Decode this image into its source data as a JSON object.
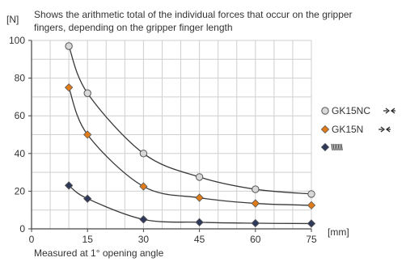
{
  "chart_data": {
    "type": "line",
    "title": "Shows the arithmetic total of the individual forces that occur on the gripper fingers, depending on the gripper finger length",
    "title_lines": [
      "Shows the arithmetic total of the individual forces that occur on the gripper",
      "fingers, depending on the gripper finger length"
    ],
    "ylabel": "[N]",
    "xlabel": "[mm]",
    "footnote": "Measured at 1° opening angle",
    "xlim": [
      0,
      75
    ],
    "ylim": [
      0,
      100
    ],
    "xticks": [
      "0",
      "15",
      "30",
      "45",
      "60",
      "75"
    ],
    "yticks": [
      "0",
      "20",
      "40",
      "60",
      "80",
      "100"
    ],
    "grid": true,
    "legend_position": "right",
    "x": [
      10,
      15,
      30,
      45,
      60,
      75
    ],
    "series": [
      {
        "name": "GK15NC",
        "symbol": "-> <-",
        "marker": "circle",
        "color": "#d8d8d8",
        "values": [
          97,
          72,
          40,
          27.5,
          21,
          18.5
        ]
      },
      {
        "name": "GK15N",
        "symbol": "-> <-",
        "marker": "diamond",
        "color": "#e07b1a",
        "values": [
          75,
          50,
          22.5,
          16.5,
          13.5,
          12.5
        ]
      },
      {
        "name": "",
        "symbol": "spring",
        "marker": "diamond",
        "color": "#2f3a5a",
        "values": [
          23,
          16,
          5,
          3.5,
          3,
          2.8
        ]
      }
    ]
  }
}
